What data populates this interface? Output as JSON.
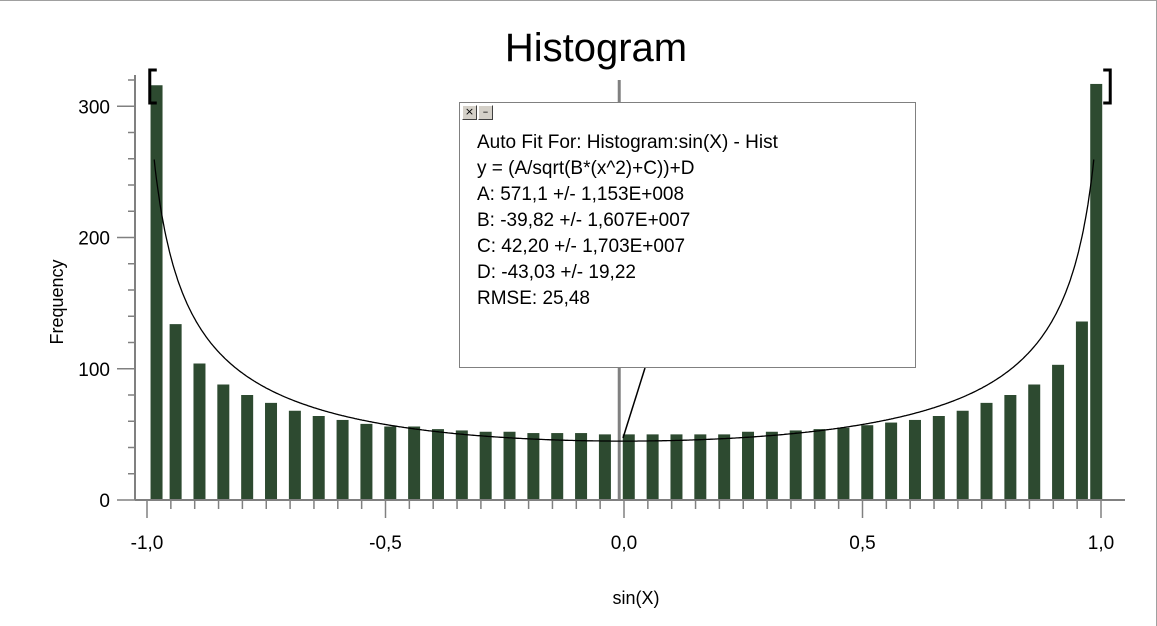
{
  "chart_data": {
    "type": "bar",
    "title": "Histogram",
    "xlabel": "sin(X)",
    "ylabel": "Frequency",
    "xlim": [
      -1.0,
      1.0
    ],
    "ylim": [
      0,
      320
    ],
    "xticks": [
      "-1,0",
      "-0,5",
      "0,0",
      "0,5",
      "1,0"
    ],
    "xtick_values": [
      -1.0,
      -0.5,
      0.0,
      0.5,
      1.0
    ],
    "yticks": [
      "0",
      "100",
      "200",
      "300"
    ],
    "ytick_values": [
      0,
      100,
      200,
      300
    ],
    "bar_color": "#2d4a30",
    "bin_centers": [
      -0.98,
      -0.94,
      -0.89,
      -0.84,
      -0.79,
      -0.74,
      -0.69,
      -0.64,
      -0.59,
      -0.54,
      -0.49,
      -0.44,
      -0.39,
      -0.34,
      -0.29,
      -0.24,
      -0.19,
      -0.14,
      -0.09,
      -0.04,
      0.01,
      0.06,
      0.11,
      0.16,
      0.21,
      0.26,
      0.31,
      0.36,
      0.41,
      0.46,
      0.51,
      0.56,
      0.61,
      0.66,
      0.71,
      0.76,
      0.81,
      0.86,
      0.91,
      0.96
    ],
    "values": [
      316,
      134,
      104,
      88,
      80,
      74,
      68,
      64,
      61,
      58,
      56,
      56,
      54,
      53,
      52,
      52,
      51,
      51,
      51,
      50,
      50,
      50,
      50,
      50,
      50,
      52,
      52,
      53,
      54,
      55,
      57,
      59,
      61,
      64,
      68,
      74,
      80,
      88,
      103,
      136
    ],
    "right_edge_bar": {
      "x": 0.99,
      "value": 317
    },
    "fit_curve": {
      "formula": "y = (A/sqrt(B*(x^2)+C))+D",
      "A": 571.1,
      "B": -39.82,
      "C": 42.2,
      "D": -43.03,
      "color": "#000000"
    },
    "cursor_x": -0.01,
    "cursor_color": "#808080",
    "range_brackets": {
      "left": -0.99,
      "right": 0.99
    }
  },
  "fit_panel": {
    "close_glyph": "×",
    "minimize_glyph": "–",
    "lines": [
      "Auto Fit For:  Histogram:sin(X) - Hist",
      "y = (A/sqrt(B*(x^2)+C))+D",
      "A: 571,1 +/- 1,153E+008",
      "B: -39,82 +/- 1,607E+007",
      "C: 42,20 +/- 1,703E+007",
      "D: -43,03 +/- 19,22",
      "RMSE: 25,48"
    ]
  }
}
